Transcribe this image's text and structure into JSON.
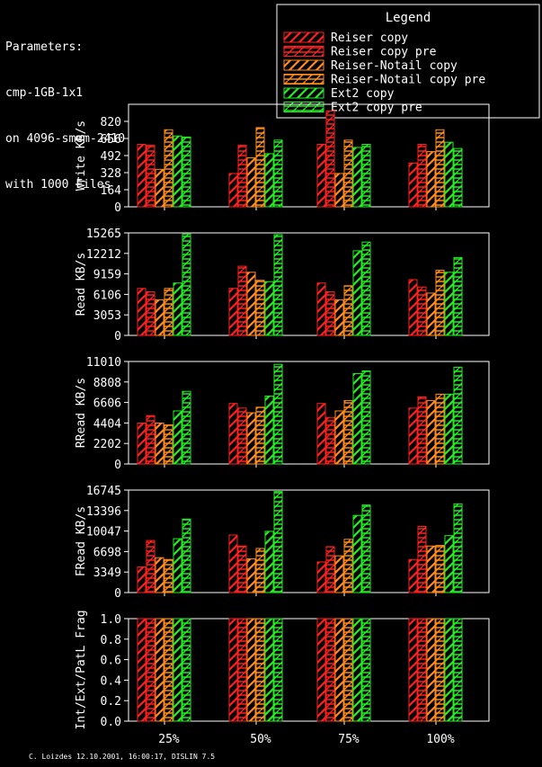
{
  "header": {
    "lines": [
      "Parameters:",
      "cmp-1GB-1x1",
      "on 4096-smem-2410",
      "with 1000 Files"
    ]
  },
  "legend": {
    "title": "Legend",
    "items": [
      {
        "label": "Reiser copy",
        "color": "#ff2020"
      },
      {
        "label": "Reiser copy pre",
        "color": "#ff2020"
      },
      {
        "label": "Reiser-Notail copy",
        "color": "#ff8c1a"
      },
      {
        "label": "Reiser-Notail copy pre",
        "color": "#ff8c1a"
      },
      {
        "label": "Ext2 copy",
        "color": "#22ee22"
      },
      {
        "label": "Ext2 copy pre",
        "color": "#22ee22"
      }
    ]
  },
  "footer": "C. Loizdes 12.10.2001, 16:00:17, DISLIN 7.5",
  "chart_data": [
    {
      "type": "bar",
      "ylabel": "Write KB/s",
      "ylim": [
        0,
        984
      ],
      "yticks": [
        "0",
        "164",
        "328",
        "492",
        "656",
        "820"
      ],
      "categories": [
        "25%",
        "50%",
        "75%",
        "100%"
      ],
      "series": [
        {
          "name": "Reiser copy",
          "values": [
            600,
            320,
            600,
            420
          ]
        },
        {
          "name": "Reiser copy pre",
          "values": [
            590,
            590,
            920,
            600
          ]
        },
        {
          "name": "Reiser-Notail copy",
          "values": [
            360,
            470,
            320,
            530
          ]
        },
        {
          "name": "Reiser-Notail copy pre",
          "values": [
            740,
            760,
            640,
            740
          ]
        },
        {
          "name": "Ext2 copy",
          "values": [
            680,
            510,
            570,
            620
          ]
        },
        {
          "name": "Ext2 copy pre",
          "values": [
            670,
            640,
            600,
            560
          ]
        }
      ]
    },
    {
      "type": "bar",
      "ylabel": "Read KB/s",
      "ylim": [
        0,
        15265
      ],
      "yticks": [
        "0",
        "3053",
        "6106",
        "9159",
        "12212",
        "15265"
      ],
      "categories": [
        "25%",
        "50%",
        "75%",
        "100%"
      ],
      "series": [
        {
          "name": "Reiser copy",
          "values": [
            7000,
            7000,
            7800,
            8300
          ]
        },
        {
          "name": "Reiser copy pre",
          "values": [
            6500,
            10300,
            6500,
            7200
          ]
        },
        {
          "name": "Reiser-Notail copy",
          "values": [
            5300,
            9400,
            5300,
            6300
          ]
        },
        {
          "name": "Reiser-Notail copy pre",
          "values": [
            7000,
            8200,
            7400,
            9700
          ]
        },
        {
          "name": "Ext2 copy",
          "values": [
            7800,
            8000,
            12600,
            9400
          ]
        },
        {
          "name": "Ext2 copy pre",
          "values": [
            15100,
            15000,
            13900,
            11600
          ]
        }
      ]
    },
    {
      "type": "bar",
      "ylabel": "RRead KB/s",
      "ylim": [
        0,
        11010
      ],
      "yticks": [
        "0",
        "2202",
        "4404",
        "6606",
        "8808",
        "11010"
      ],
      "categories": [
        "25%",
        "50%",
        "75%",
        "100%"
      ],
      "series": [
        {
          "name": "Reiser copy",
          "values": [
            4400,
            6500,
            6500,
            6000
          ]
        },
        {
          "name": "Reiser copy pre",
          "values": [
            5200,
            6000,
            5000,
            7200
          ]
        },
        {
          "name": "Reiser-Notail copy",
          "values": [
            4400,
            5500,
            5700,
            6800
          ]
        },
        {
          "name": "Reiser-Notail copy pre",
          "values": [
            4200,
            6100,
            6800,
            7500
          ]
        },
        {
          "name": "Ext2 copy",
          "values": [
            5700,
            7300,
            9700,
            7500
          ]
        },
        {
          "name": "Ext2 copy pre",
          "values": [
            7800,
            10700,
            10000,
            10400
          ]
        }
      ]
    },
    {
      "type": "bar",
      "ylabel": "FRead KB/s",
      "ylim": [
        0,
        16745
      ],
      "yticks": [
        "0",
        "3349",
        "6698",
        "10047",
        "13396",
        "16745"
      ],
      "categories": [
        "25%",
        "50%",
        "75%",
        "100%"
      ],
      "series": [
        {
          "name": "Reiser copy",
          "values": [
            4200,
            9400,
            5000,
            5400
          ]
        },
        {
          "name": "Reiser copy pre",
          "values": [
            8500,
            7600,
            7500,
            10800
          ]
        },
        {
          "name": "Reiser-Notail copy",
          "values": [
            5700,
            5500,
            6000,
            7600
          ]
        },
        {
          "name": "Reiser-Notail copy pre",
          "values": [
            5400,
            7200,
            8700,
            7700
          ]
        },
        {
          "name": "Ext2 copy",
          "values": [
            8800,
            10000,
            12600,
            9300
          ]
        },
        {
          "name": "Ext2 copy pre",
          "values": [
            12000,
            16500,
            14300,
            14500
          ]
        }
      ]
    },
    {
      "type": "bar",
      "ylabel": "Int/Ext/PatL Frag",
      "ylim": [
        0,
        1
      ],
      "yticks": [
        "0.0",
        "0.2",
        "0.4",
        "0.6",
        "0.8",
        "1.0"
      ],
      "categories": [
        "25%",
        "50%",
        "75%",
        "100%"
      ],
      "series": [
        {
          "name": "Reiser copy",
          "values": [
            1.0,
            1.0,
            1.0,
            1.0
          ]
        },
        {
          "name": "Reiser copy pre",
          "values": [
            1.0,
            1.0,
            1.0,
            1.0
          ]
        },
        {
          "name": "Reiser-Notail copy",
          "values": [
            1.0,
            1.0,
            1.0,
            1.0
          ]
        },
        {
          "name": "Reiser-Notail copy pre",
          "values": [
            1.0,
            1.0,
            1.0,
            1.0
          ]
        },
        {
          "name": "Ext2 copy",
          "values": [
            1.0,
            1.0,
            1.0,
            1.0
          ]
        },
        {
          "name": "Ext2 copy pre",
          "values": [
            1.0,
            1.0,
            1.0,
            1.0
          ]
        }
      ]
    }
  ]
}
